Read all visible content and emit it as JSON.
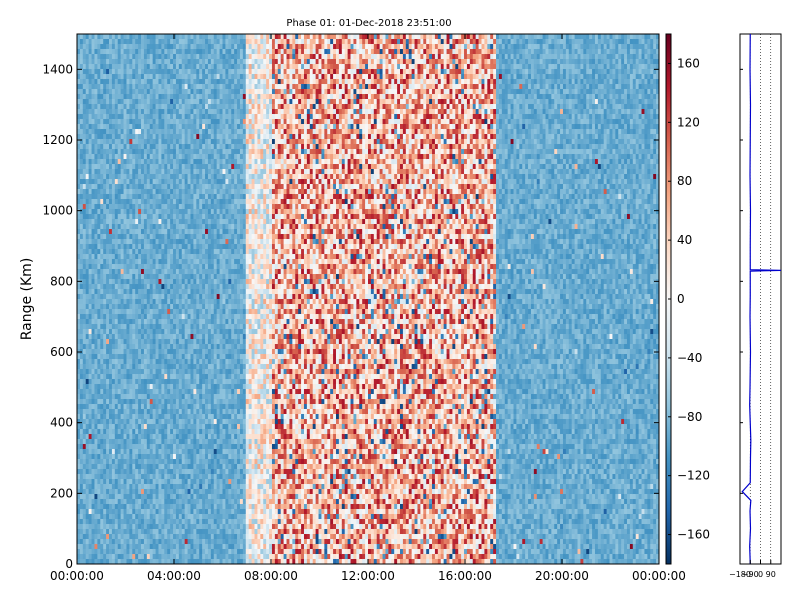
{
  "chart_data": [
    {
      "type": "heatmap",
      "title": "Phase 01: 01-Dec-2018 23:51:00",
      "xlabel": "",
      "ylabel": "Range (Km)",
      "x_tick_labels": [
        "00:00:00",
        "04:00:00",
        "08:00:00",
        "12:00:00",
        "16:00:00",
        "20:00:00",
        "00:00:00"
      ],
      "x_ticks_hours": [
        0,
        4,
        8,
        12,
        16,
        20,
        24
      ],
      "xlim_hours": [
        0,
        24
      ],
      "y_ticks": [
        0,
        200,
        400,
        600,
        800,
        1000,
        1200,
        1400
      ],
      "ylim": [
        0,
        1500
      ],
      "grid": false,
      "colormap": "RdBu_r",
      "colorbar": {
        "vmin": -180,
        "vmax": 180,
        "ticks": [
          -160,
          -120,
          -80,
          -40,
          0,
          40,
          80,
          120,
          160
        ],
        "tick_labels": [
          "−160",
          "−120",
          "−80",
          "−40",
          "0",
          "40",
          "80",
          "120",
          "160"
        ]
      },
      "regions": [
        {
          "hours": [
            0,
            7
          ],
          "phase_deg_typical": -90
        },
        {
          "hours": [
            7,
            8
          ],
          "phase_deg_typical": 0
        },
        {
          "hours": [
            8,
            17.3
          ],
          "phase_deg_typical": 60
        },
        {
          "hours": [
            17.3,
            24
          ],
          "phase_deg_typical": -90
        }
      ]
    },
    {
      "type": "line",
      "title": "",
      "xlabel": "",
      "ylabel": "",
      "x_tick_labels": [
        "−180",
        "−90",
        "0",
        "90"
      ],
      "x_ticks": [
        -180,
        -90,
        0,
        90
      ],
      "xlim": [
        -180,
        180
      ],
      "ylim": [
        0,
        1500
      ],
      "grid": true,
      "series": [
        {
          "color": "#0000cc",
          "points": [
            [
              -90,
              0
            ],
            [
              -95,
              50
            ],
            [
              -88,
              100
            ],
            [
              -92,
              150
            ],
            [
              -85,
              180
            ],
            [
              -160,
              205
            ],
            [
              -90,
              230
            ],
            [
              -88,
              300
            ],
            [
              -85,
              350
            ],
            [
              -90,
              400
            ],
            [
              -95,
              450
            ],
            [
              -92,
              500
            ],
            [
              -90,
              550
            ],
            [
              -88,
              600
            ],
            [
              -90,
              650
            ],
            [
              -92,
              700
            ],
            [
              -90,
              760
            ],
            [
              -90,
              829
            ],
            [
              180,
              831
            ],
            [
              -90,
              833
            ],
            [
              -90,
              900
            ],
            [
              -88,
              1000
            ],
            [
              -92,
              1100
            ],
            [
              -90,
              1200
            ],
            [
              -88,
              1300
            ],
            [
              -92,
              1400
            ],
            [
              -90,
              1500
            ]
          ]
        }
      ]
    }
  ]
}
